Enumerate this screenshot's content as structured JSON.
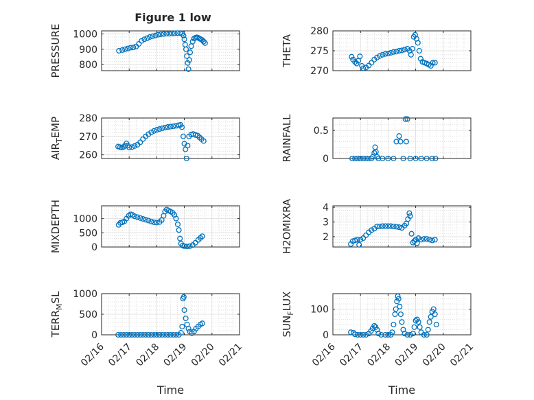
{
  "figure_title": "Figure 1 low",
  "colors": {
    "marker": "#0072BD",
    "axis": "#262626",
    "grid": "#d9d9d9",
    "background": "#ffffff"
  },
  "x_tick_labels": [
    "02/16",
    "02/17",
    "02/18",
    "02/19",
    "02/20",
    "02/21"
  ],
  "chart_data": [
    {
      "type": "scatter",
      "title": "Figure 1 low",
      "ylabel": "PRESSURE",
      "xlabel": "",
      "xlim": [
        0,
        5
      ],
      "ylim": [
        760,
        1020
      ],
      "yticks": [
        800,
        900,
        1000
      ],
      "grid": true,
      "minor_grid": true,
      "points": [
        [
          0.63,
          890
        ],
        [
          0.75,
          895
        ],
        [
          0.85,
          900
        ],
        [
          0.95,
          905
        ],
        [
          1.05,
          910
        ],
        [
          1.15,
          912
        ],
        [
          1.25,
          918
        ],
        [
          1.35,
          935
        ],
        [
          1.45,
          955
        ],
        [
          1.55,
          965
        ],
        [
          1.65,
          972
        ],
        [
          1.75,
          980
        ],
        [
          1.85,
          985
        ],
        [
          1.95,
          990
        ],
        [
          2.05,
          995
        ],
        [
          2.15,
          998
        ],
        [
          2.25,
          1000
        ],
        [
          2.35,
          1002
        ],
        [
          2.45,
          1002
        ],
        [
          2.55,
          1003
        ],
        [
          2.65,
          1004
        ],
        [
          2.75,
          1005
        ],
        [
          2.85,
          1005
        ],
        [
          2.92,
          1002
        ],
        [
          2.97,
          990
        ],
        [
          3.0,
          965
        ],
        [
          3.03,
          930
        ],
        [
          3.06,
          900
        ],
        [
          3.09,
          855
        ],
        [
          3.12,
          810
        ],
        [
          3.15,
          770
        ],
        [
          3.18,
          830
        ],
        [
          3.21,
          880
        ],
        [
          3.25,
          920
        ],
        [
          3.3,
          950
        ],
        [
          3.35,
          970
        ],
        [
          3.4,
          975
        ],
        [
          3.45,
          978
        ],
        [
          3.5,
          975
        ],
        [
          3.55,
          970
        ],
        [
          3.6,
          965
        ],
        [
          3.65,
          960
        ],
        [
          3.7,
          950
        ],
        [
          3.75,
          940
        ]
      ]
    },
    {
      "type": "scatter",
      "ylabel": "THETA",
      "xlabel": "",
      "xlim": [
        0,
        5
      ],
      "ylim": [
        270,
        280
      ],
      "yticks": [
        270,
        275,
        280
      ],
      "grid": true,
      "minor_grid": true,
      "points": [
        [
          0.68,
          273.5
        ],
        [
          0.73,
          272.8
        ],
        [
          0.8,
          272.2
        ],
        [
          0.86,
          271.8
        ],
        [
          0.92,
          272.5
        ],
        [
          0.98,
          273.6
        ],
        [
          1.05,
          271.2
        ],
        [
          1.1,
          270.6
        ],
        [
          1.2,
          270.8
        ],
        [
          1.3,
          271.3
        ],
        [
          1.4,
          272.0
        ],
        [
          1.5,
          272.8
        ],
        [
          1.6,
          273.3
        ],
        [
          1.7,
          273.7
        ],
        [
          1.8,
          274.0
        ],
        [
          1.9,
          274.2
        ],
        [
          2.0,
          274.3
        ],
        [
          2.1,
          274.5
        ],
        [
          2.2,
          274.7
        ],
        [
          2.3,
          274.8
        ],
        [
          2.4,
          275.0
        ],
        [
          2.5,
          275.1
        ],
        [
          2.6,
          275.3
        ],
        [
          2.7,
          275.5
        ],
        [
          2.78,
          275.0
        ],
        [
          2.83,
          274.0
        ],
        [
          2.88,
          275.5
        ],
        [
          2.93,
          278.5
        ],
        [
          2.98,
          279.0
        ],
        [
          3.03,
          278.0
        ],
        [
          3.08,
          277.0
        ],
        [
          3.13,
          275.0
        ],
        [
          3.18,
          273.0
        ],
        [
          3.25,
          272.2
        ],
        [
          3.32,
          272.0
        ],
        [
          3.4,
          271.8
        ],
        [
          3.47,
          271.5
        ],
        [
          3.55,
          271.2
        ],
        [
          3.62,
          272.0
        ],
        [
          3.7,
          272.0
        ]
      ]
    },
    {
      "type": "scatter",
      "ylabel": "AIR_TEMP",
      "ylabel_main": "AIR",
      "ylabel_sub": "T",
      "ylabel_rest": "EMP",
      "xlabel": "",
      "xlim": [
        0,
        5
      ],
      "ylim": [
        258,
        280
      ],
      "yticks": [
        260,
        270,
        280
      ],
      "grid": true,
      "minor_grid": true,
      "points": [
        [
          0.6,
          264.5
        ],
        [
          0.67,
          264.2
        ],
        [
          0.74,
          264.0
        ],
        [
          0.8,
          264.3
        ],
        [
          0.85,
          265.0
        ],
        [
          0.9,
          266.2
        ],
        [
          0.95,
          265.0
        ],
        [
          1.0,
          264.0
        ],
        [
          1.1,
          264.2
        ],
        [
          1.2,
          264.8
        ],
        [
          1.3,
          265.5
        ],
        [
          1.4,
          266.8
        ],
        [
          1.5,
          268.5
        ],
        [
          1.6,
          270.0
        ],
        [
          1.7,
          271.2
        ],
        [
          1.8,
          272.2
        ],
        [
          1.9,
          273.0
        ],
        [
          2.0,
          273.6
        ],
        [
          2.1,
          274.0
        ],
        [
          2.2,
          274.4
        ],
        [
          2.3,
          274.8
        ],
        [
          2.4,
          275.1
        ],
        [
          2.5,
          275.3
        ],
        [
          2.6,
          275.5
        ],
        [
          2.7,
          275.8
        ],
        [
          2.8,
          276.0
        ],
        [
          2.86,
          276.3
        ],
        [
          2.91,
          275.0
        ],
        [
          2.96,
          270.0
        ],
        [
          3.0,
          266.0
        ],
        [
          3.04,
          263.0
        ],
        [
          3.08,
          258.0
        ],
        [
          3.12,
          265.0
        ],
        [
          3.17,
          270.0
        ],
        [
          3.25,
          271.0
        ],
        [
          3.32,
          271.3
        ],
        [
          3.4,
          270.8
        ],
        [
          3.48,
          270.5
        ],
        [
          3.55,
          269.5
        ],
        [
          3.62,
          268.5
        ],
        [
          3.7,
          267.5
        ]
      ]
    },
    {
      "type": "scatter",
      "ylabel": "RAINFALL",
      "xlabel": "",
      "xlim": [
        0,
        5
      ],
      "ylim": [
        0,
        0.72
      ],
      "yticks": [
        0,
        0.5
      ],
      "grid": true,
      "minor_grid": true,
      "points": [
        [
          0.7,
          0
        ],
        [
          0.8,
          0
        ],
        [
          0.9,
          0
        ],
        [
          1.0,
          0
        ],
        [
          1.1,
          0
        ],
        [
          1.2,
          0
        ],
        [
          1.3,
          0
        ],
        [
          1.4,
          0
        ],
        [
          1.45,
          0.03
        ],
        [
          1.5,
          0.1
        ],
        [
          1.53,
          0.2
        ],
        [
          1.56,
          0.12
        ],
        [
          1.6,
          0.03
        ],
        [
          1.65,
          0
        ],
        [
          1.8,
          0
        ],
        [
          2.0,
          0
        ],
        [
          2.2,
          0
        ],
        [
          2.3,
          0.3
        ],
        [
          2.4,
          0.4
        ],
        [
          2.45,
          0.3
        ],
        [
          2.55,
          0
        ],
        [
          2.63,
          0.7
        ],
        [
          2.66,
          0.3
        ],
        [
          2.7,
          0.7
        ],
        [
          2.8,
          0
        ],
        [
          3.0,
          0
        ],
        [
          3.2,
          0
        ],
        [
          3.4,
          0
        ],
        [
          3.6,
          0
        ],
        [
          3.72,
          0
        ]
      ]
    },
    {
      "type": "scatter",
      "ylabel": "MIXDEPTH",
      "xlabel": "",
      "xlim": [
        0,
        5
      ],
      "ylim": [
        0,
        1450
      ],
      "yticks": [
        0,
        500,
        1000
      ],
      "grid": true,
      "minor_grid": true,
      "points": [
        [
          0.62,
          780
        ],
        [
          0.68,
          850
        ],
        [
          0.75,
          870
        ],
        [
          0.82,
          900
        ],
        [
          0.9,
          1000
        ],
        [
          0.98,
          1100
        ],
        [
          1.05,
          1150
        ],
        [
          1.12,
          1130
        ],
        [
          1.2,
          1080
        ],
        [
          1.3,
          1050
        ],
        [
          1.4,
          1020
        ],
        [
          1.5,
          990
        ],
        [
          1.6,
          960
        ],
        [
          1.7,
          930
        ],
        [
          1.8,
          900
        ],
        [
          1.9,
          870
        ],
        [
          2.0,
          860
        ],
        [
          2.1,
          880
        ],
        [
          2.18,
          950
        ],
        [
          2.25,
          1100
        ],
        [
          2.3,
          1250
        ],
        [
          2.36,
          1320
        ],
        [
          2.42,
          1280
        ],
        [
          2.5,
          1250
        ],
        [
          2.58,
          1200
        ],
        [
          2.64,
          1130
        ],
        [
          2.7,
          1000
        ],
        [
          2.76,
          800
        ],
        [
          2.8,
          600
        ],
        [
          2.84,
          300
        ],
        [
          2.88,
          120
        ],
        [
          2.94,
          50
        ],
        [
          3.0,
          30
        ],
        [
          3.1,
          20
        ],
        [
          3.2,
          30
        ],
        [
          3.3,
          70
        ],
        [
          3.4,
          150
        ],
        [
          3.5,
          250
        ],
        [
          3.58,
          320
        ],
        [
          3.65,
          380
        ]
      ]
    },
    {
      "type": "scatter",
      "ylabel": "H2OMIXRA",
      "xlabel": "",
      "xlim": [
        0,
        5
      ],
      "ylim": [
        1.3,
        4.1
      ],
      "yticks": [
        2,
        3,
        4
      ],
      "grid": true,
      "minor_grid": true,
      "points": [
        [
          0.65,
          1.5
        ],
        [
          0.72,
          1.7
        ],
        [
          0.8,
          1.75
        ],
        [
          0.88,
          1.8
        ],
        [
          0.95,
          1.45
        ],
        [
          1.0,
          1.8
        ],
        [
          1.1,
          1.9
        ],
        [
          1.2,
          2.1
        ],
        [
          1.3,
          2.3
        ],
        [
          1.4,
          2.45
        ],
        [
          1.5,
          2.55
        ],
        [
          1.6,
          2.7
        ],
        [
          1.7,
          2.7
        ],
        [
          1.8,
          2.72
        ],
        [
          1.9,
          2.72
        ],
        [
          2.0,
          2.72
        ],
        [
          2.1,
          2.72
        ],
        [
          2.2,
          2.7
        ],
        [
          2.3,
          2.68
        ],
        [
          2.4,
          2.65
        ],
        [
          2.5,
          2.6
        ],
        [
          2.6,
          2.75
        ],
        [
          2.66,
          2.9
        ],
        [
          2.72,
          3.2
        ],
        [
          2.77,
          3.6
        ],
        [
          2.8,
          3.4
        ],
        [
          2.85,
          2.2
        ],
        [
          2.9,
          1.6
        ],
        [
          2.95,
          1.7
        ],
        [
          3.0,
          1.8
        ],
        [
          3.05,
          1.55
        ],
        [
          3.1,
          1.9
        ],
        [
          3.2,
          1.8
        ],
        [
          3.3,
          1.85
        ],
        [
          3.4,
          1.85
        ],
        [
          3.5,
          1.8
        ],
        [
          3.6,
          1.75
        ],
        [
          3.7,
          1.8
        ]
      ]
    },
    {
      "type": "scatter",
      "ylabel": "TERR_MSL",
      "ylabel_main": "TERR",
      "ylabel_sub": "M",
      "ylabel_rest": "SL",
      "xlabel": "Time",
      "xlim": [
        0,
        5
      ],
      "ylim": [
        0,
        1000
      ],
      "yticks": [
        0,
        500,
        1000
      ],
      "grid": true,
      "minor_grid": true,
      "points": [
        [
          0.6,
          0
        ],
        [
          0.7,
          0
        ],
        [
          0.8,
          0
        ],
        [
          0.9,
          0
        ],
        [
          1.0,
          0
        ],
        [
          1.1,
          0
        ],
        [
          1.2,
          0
        ],
        [
          1.3,
          0
        ],
        [
          1.4,
          0
        ],
        [
          1.5,
          0
        ],
        [
          1.6,
          0
        ],
        [
          1.7,
          0
        ],
        [
          1.8,
          0
        ],
        [
          1.9,
          0
        ],
        [
          2.0,
          0
        ],
        [
          2.1,
          0
        ],
        [
          2.2,
          0
        ],
        [
          2.3,
          0
        ],
        [
          2.4,
          0
        ],
        [
          2.5,
          0
        ],
        [
          2.6,
          0
        ],
        [
          2.7,
          0
        ],
        [
          2.8,
          0
        ],
        [
          2.88,
          50
        ],
        [
          2.92,
          200
        ],
        [
          2.95,
          880
        ],
        [
          2.98,
          920
        ],
        [
          3.0,
          600
        ],
        [
          3.05,
          400
        ],
        [
          3.1,
          250
        ],
        [
          3.15,
          150
        ],
        [
          3.2,
          80
        ],
        [
          3.27,
          40
        ],
        [
          3.35,
          80
        ],
        [
          3.42,
          150
        ],
        [
          3.5,
          200
        ],
        [
          3.58,
          250
        ],
        [
          3.65,
          280
        ]
      ]
    },
    {
      "type": "scatter",
      "ylabel": "SUN_FLUX",
      "ylabel_main": "SUN",
      "ylabel_sub": "F",
      "ylabel_rest": "LUX",
      "xlabel": "Time",
      "xlim": [
        0,
        5
      ],
      "ylim": [
        0,
        160
      ],
      "yticks": [
        0,
        100
      ],
      "grid": true,
      "minor_grid": true,
      "points": [
        [
          0.65,
          10
        ],
        [
          0.75,
          8
        ],
        [
          0.8,
          2
        ],
        [
          0.9,
          0
        ],
        [
          1.0,
          0
        ],
        [
          1.1,
          0
        ],
        [
          1.2,
          0
        ],
        [
          1.3,
          5
        ],
        [
          1.38,
          15
        ],
        [
          1.44,
          25
        ],
        [
          1.5,
          35
        ],
        [
          1.55,
          30
        ],
        [
          1.6,
          20
        ],
        [
          1.65,
          5
        ],
        [
          1.75,
          0
        ],
        [
          1.9,
          0
        ],
        [
          2.0,
          0
        ],
        [
          2.1,
          0
        ],
        [
          2.15,
          10
        ],
        [
          2.2,
          40
        ],
        [
          2.25,
          80
        ],
        [
          2.28,
          100
        ],
        [
          2.32,
          130
        ],
        [
          2.35,
          150
        ],
        [
          2.38,
          140
        ],
        [
          2.42,
          110
        ],
        [
          2.46,
          80
        ],
        [
          2.5,
          50
        ],
        [
          2.55,
          20
        ],
        [
          2.6,
          5
        ],
        [
          2.7,
          0
        ],
        [
          2.8,
          0
        ],
        [
          2.9,
          5
        ],
        [
          2.95,
          30
        ],
        [
          3.0,
          55
        ],
        [
          3.05,
          60
        ],
        [
          3.1,
          50
        ],
        [
          3.15,
          30
        ],
        [
          3.2,
          10
        ],
        [
          3.3,
          0
        ],
        [
          3.4,
          0
        ],
        [
          3.45,
          20
        ],
        [
          3.5,
          50
        ],
        [
          3.55,
          70
        ],
        [
          3.6,
          90
        ],
        [
          3.65,
          100
        ],
        [
          3.7,
          80
        ],
        [
          3.75,
          40
        ]
      ]
    }
  ]
}
